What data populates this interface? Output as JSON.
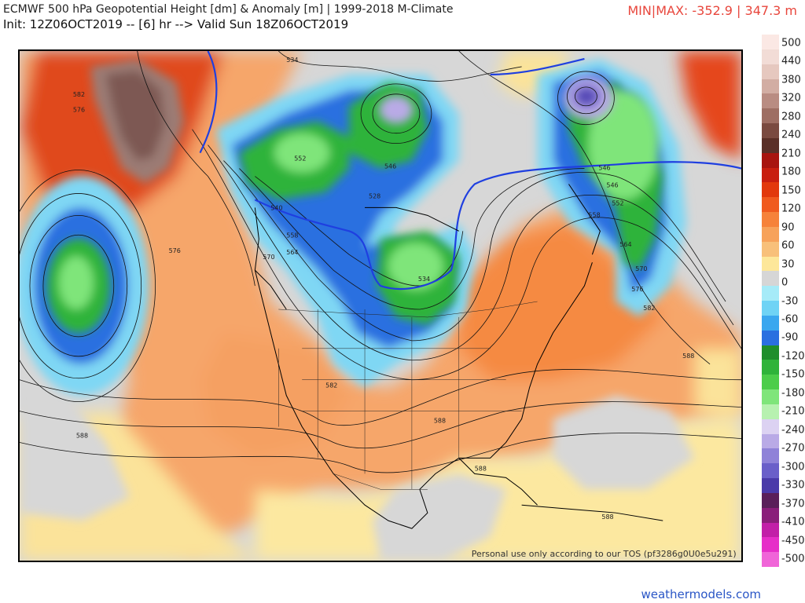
{
  "header": {
    "title": "ECMWF 500 hPa Geopotential Height [dm] & Anomaly [m] | 1999-2018 M-Climate",
    "subtitle": "Init: 12Z06OCT2019 -- [6] hr --> Valid Sun 18Z06OCT2019",
    "minmax": "MIN|MAX: -352.9 | 347.3 m"
  },
  "colors": {
    "minmax": "#e8463c",
    "credit": "#2a56c6"
  },
  "colorbar": {
    "labels": [
      "500",
      "440",
      "380",
      "320",
      "280",
      "240",
      "210",
      "180",
      "150",
      "120",
      "90",
      "60",
      "30",
      "0",
      "-30",
      "-60",
      "-90",
      "-120",
      "-150",
      "-180",
      "-210",
      "-240",
      "-270",
      "-300",
      "-330",
      "-370",
      "-410",
      "-450",
      "-500"
    ],
    "swatches": [
      "#fbe8e4",
      "#f2dcd6",
      "#e6c8bf",
      "#d2ada3",
      "#b98c82",
      "#9e6e63",
      "#7a4a40",
      "#5a2f27",
      "#a8140f",
      "#c81e0f",
      "#e2380c",
      "#f05a1e",
      "#f6823a",
      "#f7a25a",
      "#f8c07a",
      "#fde79a",
      "#d6d6d6",
      "#a6ebf8",
      "#6fd3f5",
      "#3aa7ef",
      "#2a6fe0",
      "#1f8e2c",
      "#2fb33a",
      "#4ccd4a",
      "#7fe57a",
      "#b7f1b0",
      "#dcd2f2",
      "#b9aae6",
      "#8f82d8",
      "#6a5fc9",
      "#4a3aa9",
      "#5a1f5a",
      "#8a1e7a",
      "#c21fa8",
      "#e62ec8",
      "#f065d8"
    ]
  },
  "map": {
    "contour_labels": [
      "534",
      "582",
      "576",
      "552",
      "546",
      "540",
      "528",
      "576",
      "570",
      "564",
      "558",
      "534",
      "582",
      "588",
      "546",
      "546",
      "552",
      "558",
      "564",
      "570",
      "576",
      "582",
      "588",
      "588",
      "588",
      "588"
    ],
    "tos": "Personal use only according to our TOS (pf3286g0U0e5u291)"
  },
  "footer": {
    "credit": "weathermodels.com"
  }
}
